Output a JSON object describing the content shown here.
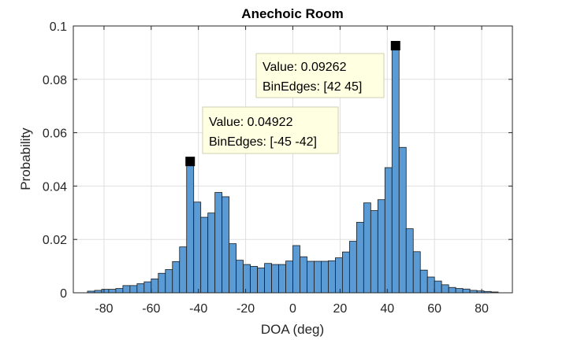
{
  "chart_data": {
    "type": "histogram",
    "title": "Anechoic Room",
    "xlabel": "DOA (deg)",
    "ylabel": "Probability",
    "xlim": [
      -93,
      93
    ],
    "ylim": [
      0,
      0.1
    ],
    "bin_width": 3,
    "x_ticks": [
      -80,
      -60,
      -40,
      -20,
      0,
      20,
      40,
      60,
      80
    ],
    "x_tick_labels": [
      "-80",
      "-60",
      "-40",
      "-20",
      "0",
      "20",
      "40",
      "60",
      "80"
    ],
    "y_ticks": [
      0,
      0.02,
      0.04,
      0.06,
      0.08,
      0.1
    ],
    "y_tick_labels": [
      "0",
      "0.02",
      "0.04",
      "0.06",
      "0.08",
      "0.1"
    ],
    "grid": true,
    "bar_color": "#5b9bd5",
    "bar_edge_color": "#1a1a1a",
    "bins": [
      {
        "left": -87,
        "right": -84,
        "value": 0.0006
      },
      {
        "left": -84,
        "right": -81,
        "value": 0.0009
      },
      {
        "left": -81,
        "right": -78,
        "value": 0.0013
      },
      {
        "left": -78,
        "right": -75,
        "value": 0.0013
      },
      {
        "left": -75,
        "right": -72,
        "value": 0.0016
      },
      {
        "left": -72,
        "right": -69,
        "value": 0.0027
      },
      {
        "left": -69,
        "right": -66,
        "value": 0.0027
      },
      {
        "left": -66,
        "right": -63,
        "value": 0.0034
      },
      {
        "left": -63,
        "right": -60,
        "value": 0.0041
      },
      {
        "left": -60,
        "right": -57,
        "value": 0.0052
      },
      {
        "left": -57,
        "right": -54,
        "value": 0.0073
      },
      {
        "left": -54,
        "right": -51,
        "value": 0.0087
      },
      {
        "left": -51,
        "right": -48,
        "value": 0.0117
      },
      {
        "left": -48,
        "right": -45,
        "value": 0.0172
      },
      {
        "left": -45,
        "right": -42,
        "value": 0.04922
      },
      {
        "left": -42,
        "right": -39,
        "value": 0.034
      },
      {
        "left": -39,
        "right": -36,
        "value": 0.0283
      },
      {
        "left": -36,
        "right": -33,
        "value": 0.0299
      },
      {
        "left": -33,
        "right": -30,
        "value": 0.0376
      },
      {
        "left": -30,
        "right": -27,
        "value": 0.036
      },
      {
        "left": -27,
        "right": -24,
        "value": 0.0184
      },
      {
        "left": -24,
        "right": -21,
        "value": 0.0122
      },
      {
        "left": -21,
        "right": -18,
        "value": 0.0106
      },
      {
        "left": -18,
        "right": -15,
        "value": 0.0099
      },
      {
        "left": -15,
        "right": -12,
        "value": 0.0093
      },
      {
        "left": -12,
        "right": -9,
        "value": 0.011
      },
      {
        "left": -9,
        "right": -6,
        "value": 0.0106
      },
      {
        "left": -6,
        "right": -3,
        "value": 0.0106
      },
      {
        "left": -3,
        "right": 0,
        "value": 0.0119
      },
      {
        "left": 0,
        "right": 3,
        "value": 0.0177
      },
      {
        "left": 3,
        "right": 6,
        "value": 0.0135
      },
      {
        "left": 6,
        "right": 9,
        "value": 0.0118
      },
      {
        "left": 9,
        "right": 12,
        "value": 0.0118
      },
      {
        "left": 12,
        "right": 15,
        "value": 0.0118
      },
      {
        "left": 15,
        "right": 18,
        "value": 0.012
      },
      {
        "left": 18,
        "right": 21,
        "value": 0.0131
      },
      {
        "left": 21,
        "right": 24,
        "value": 0.0153
      },
      {
        "left": 24,
        "right": 27,
        "value": 0.0193
      },
      {
        "left": 27,
        "right": 30,
        "value": 0.0264
      },
      {
        "left": 30,
        "right": 33,
        "value": 0.0337
      },
      {
        "left": 33,
        "right": 36,
        "value": 0.0308
      },
      {
        "left": 36,
        "right": 39,
        "value": 0.0349
      },
      {
        "left": 39,
        "right": 42,
        "value": 0.0469
      },
      {
        "left": 42,
        "right": 45,
        "value": 0.09262
      },
      {
        "left": 45,
        "right": 48,
        "value": 0.0545
      },
      {
        "left": 48,
        "right": 51,
        "value": 0.024
      },
      {
        "left": 51,
        "right": 54,
        "value": 0.0154
      },
      {
        "left": 54,
        "right": 57,
        "value": 0.0085
      },
      {
        "left": 57,
        "right": 60,
        "value": 0.0059
      },
      {
        "left": 60,
        "right": 63,
        "value": 0.0044
      },
      {
        "left": 63,
        "right": 66,
        "value": 0.003
      },
      {
        "left": 66,
        "right": 69,
        "value": 0.002
      },
      {
        "left": 69,
        "right": 72,
        "value": 0.0016
      },
      {
        "left": 72,
        "right": 75,
        "value": 0.0014
      },
      {
        "left": 75,
        "right": 78,
        "value": 0.0009
      },
      {
        "left": 78,
        "right": 81,
        "value": 0.0007
      },
      {
        "left": 81,
        "right": 84,
        "value": 0.0005
      },
      {
        "left": 84,
        "right": 87,
        "value": 0.0003
      }
    ],
    "annotations": [
      {
        "name": "datatip-peak-right",
        "marker_x": 43.5,
        "marker_y": 0.09262,
        "value_label": "Value: 0.09262",
        "binedges_label": "BinEdges: [42 45]"
      },
      {
        "name": "datatip-peak-left",
        "marker_x": -43.5,
        "marker_y": 0.04922,
        "value_label": "Value: 0.04922",
        "binedges_label": "BinEdges: [-45 -42]"
      }
    ]
  }
}
